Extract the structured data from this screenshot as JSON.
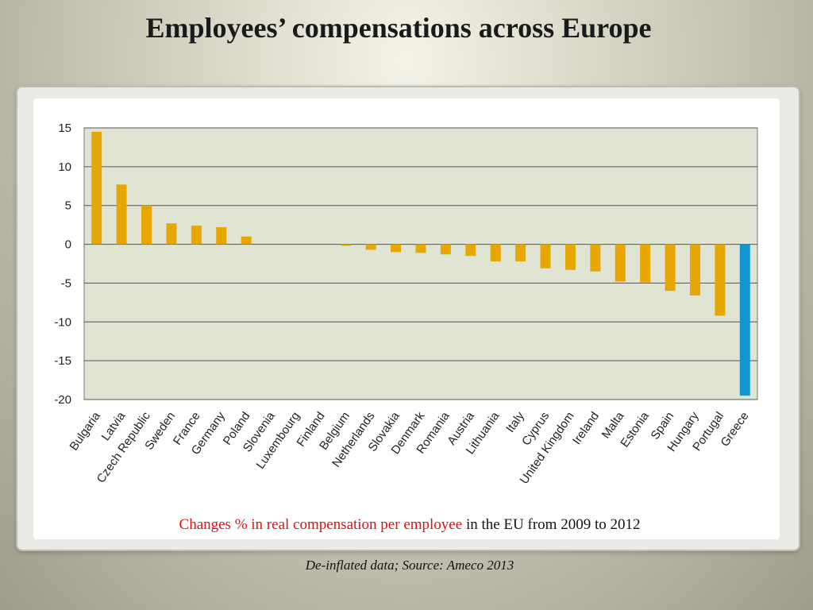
{
  "slide": {
    "title": "Employees’ compensations across Europe",
    "caption_red": "Changes % in real compensation per employee",
    "caption_rest": " in the EU from 2009 to 2012",
    "source": "De-inflated data; Source: Ameco 2013"
  },
  "chart_data": {
    "type": "bar",
    "title": "",
    "xlabel": "",
    "ylabel": "",
    "ylim": [
      -20,
      15
    ],
    "yticks": [
      15,
      10,
      5,
      0,
      -5,
      -10,
      -15,
      -20
    ],
    "grid": true,
    "legend": "none",
    "categories": [
      "Bulgaria",
      "Latvia",
      "Czech Republic",
      "Sweden",
      "France",
      "Germany",
      "Poland",
      "Slovenia",
      "Luxembourg",
      "Finland",
      "Belgium",
      "Netherlands",
      "Slovakia",
      "Denmark",
      "Romania",
      "Austria",
      "Lithuania",
      "Italy",
      "Cyprus",
      "United Kingdom",
      "Ireland",
      "Malta",
      "Estonia",
      "Spain",
      "Hungary",
      "Portugal",
      "Greece"
    ],
    "values": [
      14.5,
      7.7,
      5.0,
      2.7,
      2.4,
      2.2,
      1.0,
      0.0,
      0.0,
      0.0,
      -0.2,
      -0.7,
      -1.0,
      -1.1,
      -1.3,
      -1.5,
      -2.2,
      -2.2,
      -3.1,
      -3.3,
      -3.5,
      -4.8,
      -4.9,
      -6.0,
      -6.6,
      -9.2,
      -19.5
    ],
    "colors": {
      "default": "#e8a700",
      "highlight": "#1096d2",
      "plot_bg": "#dfe5d2",
      "gridline": "#555555"
    },
    "highlight_category": "Greece"
  }
}
